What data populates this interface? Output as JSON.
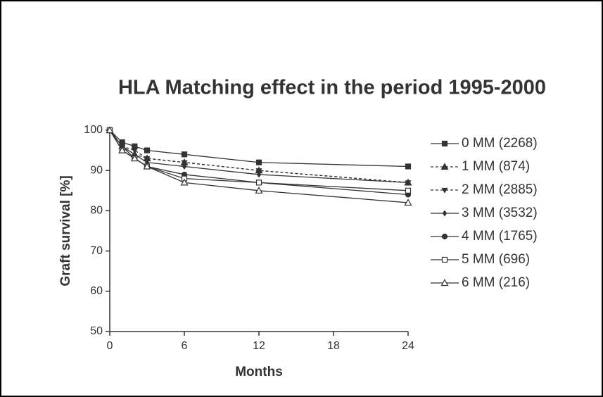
{
  "chart_data": {
    "type": "line",
    "title": "HLA Matching effect in the period 1995-2000",
    "x_label": "Months",
    "y_label": "Graft survival [%]",
    "x": [
      0,
      1,
      2,
      3,
      6,
      12,
      24
    ],
    "xlim": [
      0,
      24
    ],
    "xticks": [
      0,
      6,
      12,
      18,
      24
    ],
    "ylim": [
      50,
      100
    ],
    "yticks": [
      50,
      60,
      70,
      80,
      90,
      100
    ],
    "series": [
      {
        "name": "0 MM (2268)",
        "color": "#333333",
        "marker": "square",
        "dashed": false,
        "values": [
          100,
          97,
          96,
          95,
          94,
          92,
          91
        ]
      },
      {
        "name": "1 MM (874)",
        "color": "#333333",
        "marker": "triangle",
        "dashed": true,
        "values": [
          100,
          96,
          94,
          93,
          92,
          90,
          87
        ]
      },
      {
        "name": "2 MM (2885)",
        "color": "#333333",
        "marker": "triangle-down",
        "dashed": true,
        "values": [
          100,
          96,
          95,
          93,
          92,
          90,
          87
        ]
      },
      {
        "name": "3 MM (3532)",
        "color": "#333333",
        "marker": "diamond",
        "dashed": false,
        "values": [
          100,
          96,
          94,
          92,
          91,
          89,
          87
        ]
      },
      {
        "name": "4 MM (1765)",
        "color": "#333333",
        "marker": "circle",
        "dashed": false,
        "values": [
          100,
          96,
          93,
          91,
          89,
          87,
          84
        ]
      },
      {
        "name": "5 MM (696)",
        "color": "#333333",
        "marker": "open-square",
        "dashed": false,
        "values": [
          100,
          95,
          93,
          91,
          88,
          87,
          85
        ]
      },
      {
        "name": "6 MM (216)",
        "color": "#333333",
        "marker": "open-triangle",
        "dashed": false,
        "values": [
          100,
          95,
          93,
          91,
          87,
          85,
          82
        ]
      }
    ]
  }
}
